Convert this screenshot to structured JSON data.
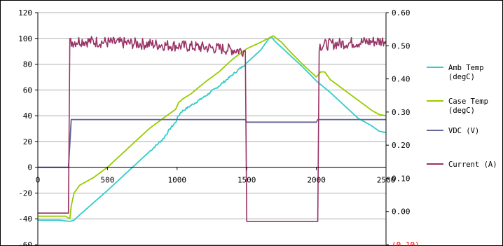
{
  "chart_data": {
    "type": "line",
    "title": "",
    "xlabel": "",
    "ylabel": "",
    "xlim": [
      0,
      2500
    ],
    "ylim": [
      -60,
      120
    ],
    "y2lim": [
      -0.1,
      0.6
    ],
    "x_ticks": [
      "0",
      "500",
      "1000",
      "1500",
      "2000",
      "2500"
    ],
    "y_ticks": [
      "120",
      "100",
      "80",
      "60",
      "40",
      "20",
      "0",
      "-20",
      "-40",
      "-60"
    ],
    "y2_ticks": [
      "0.60",
      "0.50",
      "0.40",
      "0.30",
      "0.20",
      "0.10",
      "0.00",
      "(0.10)"
    ],
    "grid": "horizontal",
    "legend_position": "right",
    "series": [
      {
        "name": "Amb Temp (degC)",
        "legend_lines": [
          "Amb Temp",
          "(degC)"
        ],
        "color": "#33cccc",
        "axis": "left",
        "points": [
          [
            0,
            -41
          ],
          [
            150,
            -41
          ],
          [
            230,
            -42
          ],
          [
            260,
            -41
          ],
          [
            300,
            -37
          ],
          [
            500,
            -18
          ],
          [
            700,
            2
          ],
          [
            900,
            22
          ],
          [
            950,
            30
          ],
          [
            990,
            35
          ],
          [
            1010,
            40
          ],
          [
            1030,
            43
          ],
          [
            1100,
            48
          ],
          [
            1200,
            55
          ],
          [
            1300,
            63
          ],
          [
            1400,
            72
          ],
          [
            1500,
            81
          ],
          [
            1600,
            91
          ],
          [
            1660,
            100
          ],
          [
            1680,
            101
          ],
          [
            1700,
            98
          ],
          [
            1800,
            88
          ],
          [
            1900,
            78
          ],
          [
            2000,
            67
          ],
          [
            2100,
            58
          ],
          [
            2200,
            48
          ],
          [
            2300,
            38
          ],
          [
            2400,
            32
          ],
          [
            2450,
            28
          ],
          [
            2500,
            27
          ]
        ]
      },
      {
        "name": "Case Temp (degC)",
        "legend_lines": [
          "Case Temp",
          "(degC)"
        ],
        "color": "#99cc00",
        "axis": "left",
        "points": [
          [
            0,
            -38
          ],
          [
            200,
            -38
          ],
          [
            230,
            -40
          ],
          [
            240,
            -30
          ],
          [
            260,
            -20
          ],
          [
            300,
            -14
          ],
          [
            400,
            -8
          ],
          [
            500,
            0
          ],
          [
            600,
            10
          ],
          [
            700,
            20
          ],
          [
            800,
            30
          ],
          [
            900,
            38
          ],
          [
            990,
            45
          ],
          [
            1010,
            50
          ],
          [
            1040,
            53
          ],
          [
            1100,
            57
          ],
          [
            1200,
            66
          ],
          [
            1300,
            74
          ],
          [
            1400,
            84
          ],
          [
            1450,
            88
          ],
          [
            1500,
            92
          ],
          [
            1600,
            97
          ],
          [
            1690,
            102
          ],
          [
            1750,
            97
          ],
          [
            1800,
            91
          ],
          [
            1900,
            80
          ],
          [
            2000,
            70
          ],
          [
            2030,
            74
          ],
          [
            2060,
            74
          ],
          [
            2100,
            68
          ],
          [
            2200,
            60
          ],
          [
            2300,
            52
          ],
          [
            2400,
            44
          ],
          [
            2450,
            41
          ],
          [
            2500,
            40
          ]
        ]
      },
      {
        "name": "VDC (V)",
        "legend_lines": [
          "VDC (V)"
        ],
        "color": "#666699",
        "axis": "left",
        "points": [
          [
            0,
            0
          ],
          [
            220,
            0
          ],
          [
            240,
            37
          ],
          [
            300,
            37
          ],
          [
            1000,
            37
          ],
          [
            1490,
            37
          ],
          [
            1500,
            35
          ],
          [
            2000,
            35
          ],
          [
            2010,
            37
          ],
          [
            2500,
            37
          ]
        ]
      },
      {
        "name": "Current (A)",
        "legend_lines": [
          "Current (A)"
        ],
        "color": "#993366",
        "axis": "right",
        "points": [
          [
            0,
            -0.005
          ],
          [
            220,
            -0.005
          ],
          [
            230,
            0.51
          ],
          [
            300,
            0.515
          ],
          [
            500,
            0.51
          ],
          [
            800,
            0.505
          ],
          [
            1200,
            0.495
          ],
          [
            1490,
            0.485
          ],
          [
            1500,
            -0.03
          ],
          [
            1600,
            -0.03
          ],
          [
            1800,
            -0.03
          ],
          [
            2000,
            -0.03
          ],
          [
            2010,
            -0.03
          ],
          [
            2020,
            0.5
          ],
          [
            2100,
            0.505
          ],
          [
            2300,
            0.51
          ],
          [
            2500,
            0.515
          ]
        ]
      }
    ]
  }
}
